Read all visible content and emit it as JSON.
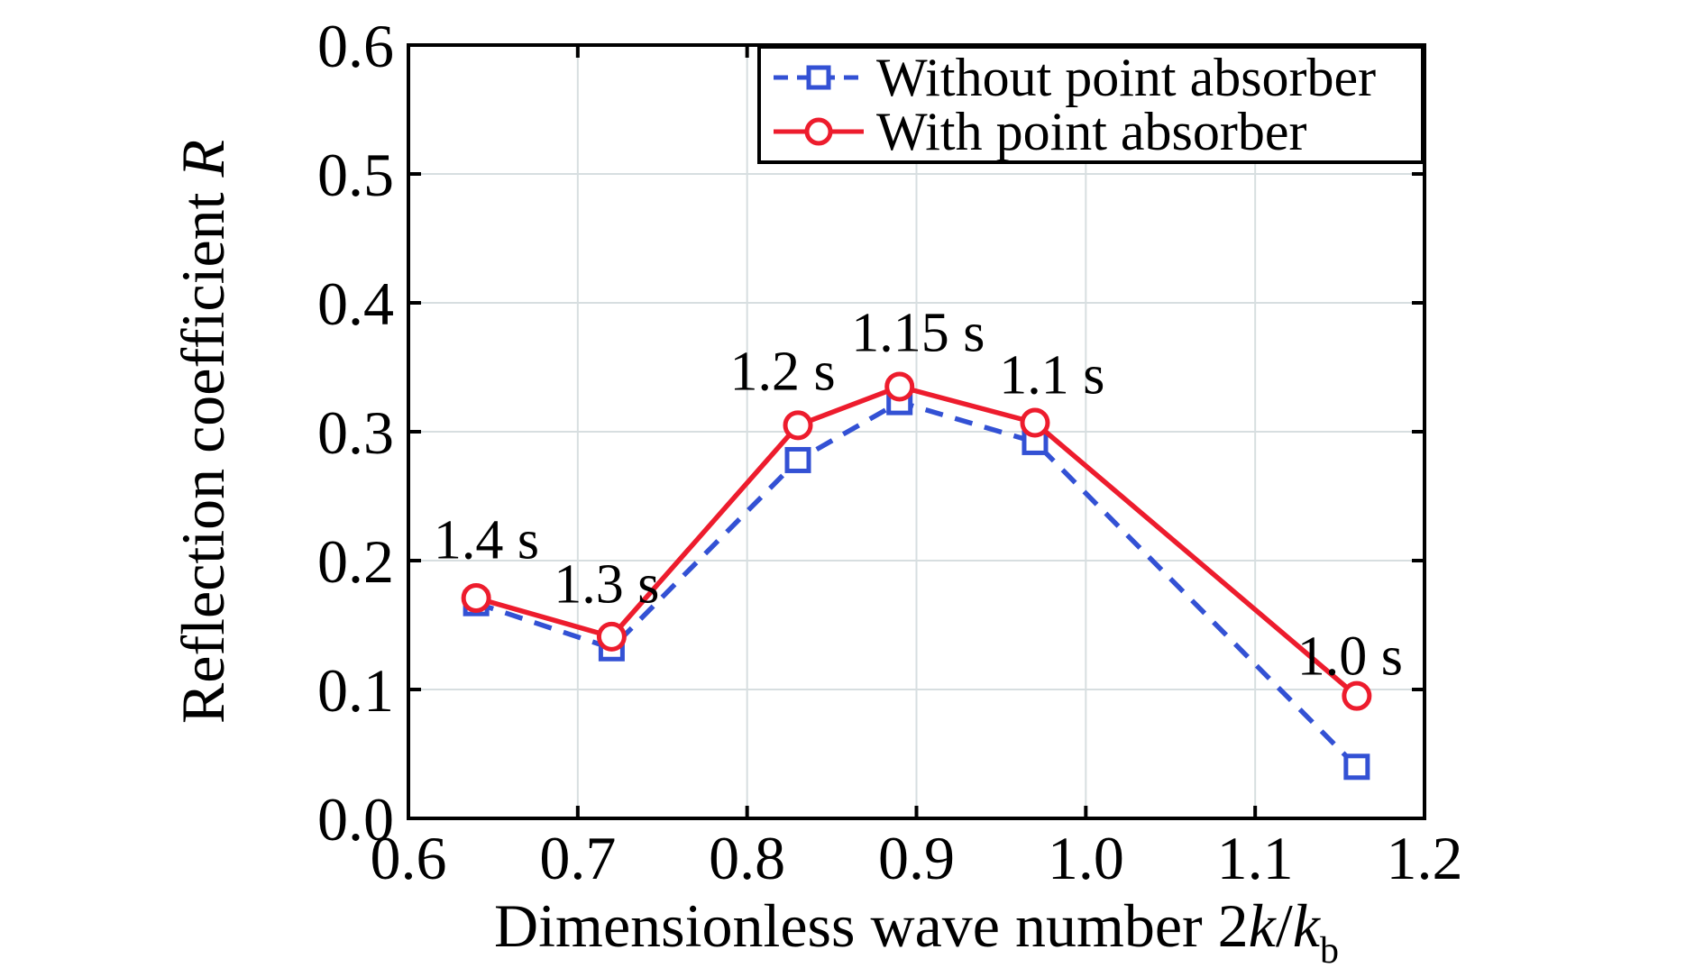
{
  "chart_data": {
    "type": "line",
    "title": "",
    "xlabel": "Dimensionless wave number 2k/k_b",
    "ylabel": "Reflection coefficient R",
    "xlabel_parts": [
      {
        "t": "Dimensionless wave number 2",
        "style": "normal"
      },
      {
        "t": "k",
        "style": "italic"
      },
      {
        "t": "/",
        "style": "normal"
      },
      {
        "t": "k",
        "style": "italic"
      },
      {
        "t": "b",
        "style": "sub"
      }
    ],
    "ylabel_parts": [
      {
        "t": "Reflection coefficient ",
        "style": "normal"
      },
      {
        "t": "R",
        "style": "italic"
      }
    ],
    "xlim": [
      0.6,
      1.2
    ],
    "ylim": [
      0.0,
      0.6
    ],
    "x_ticks": [
      0.6,
      0.7,
      0.8,
      0.9,
      1.0,
      1.1,
      1.2
    ],
    "x_tick_labels": [
      "0.6",
      "0.7",
      "0.8",
      "0.9",
      "1.0",
      "1.1",
      "1.2"
    ],
    "y_ticks": [
      0.0,
      0.1,
      0.2,
      0.3,
      0.4,
      0.5,
      0.6
    ],
    "y_tick_labels": [
      "0.0",
      "0.1",
      "0.2",
      "0.3",
      "0.4",
      "0.5",
      "0.6"
    ],
    "grid": true,
    "grid_color": "#d7dee0",
    "axis_color": "#000000",
    "x": [
      0.64,
      0.72,
      0.83,
      0.89,
      0.97,
      1.16
    ],
    "series": [
      {
        "name": "Without point absorber",
        "values": [
          0.167,
          0.132,
          0.278,
          0.323,
          0.292,
          0.04
        ],
        "color": "#3351d4",
        "line_style": "dashed",
        "marker": "square"
      },
      {
        "name": "With point absorber",
        "values": [
          0.171,
          0.141,
          0.305,
          0.335,
          0.307,
          0.095
        ],
        "color": "#ed1c2d",
        "line_style": "solid",
        "marker": "circle"
      }
    ],
    "annotations": [
      {
        "text": "1.4 s",
        "x": 0.646,
        "y": 0.217
      },
      {
        "text": "1.3 s",
        "x": 0.717,
        "y": 0.183
      },
      {
        "text": "1.2 s",
        "x": 0.821,
        "y": 0.348
      },
      {
        "text": "1.15 s",
        "x": 0.901,
        "y": 0.378
      },
      {
        "text": "1.1 s",
        "x": 0.98,
        "y": 0.345
      },
      {
        "text": "1.0 s",
        "x": 1.156,
        "y": 0.127
      }
    ],
    "legend": {
      "position": "top-right",
      "border": true
    }
  }
}
